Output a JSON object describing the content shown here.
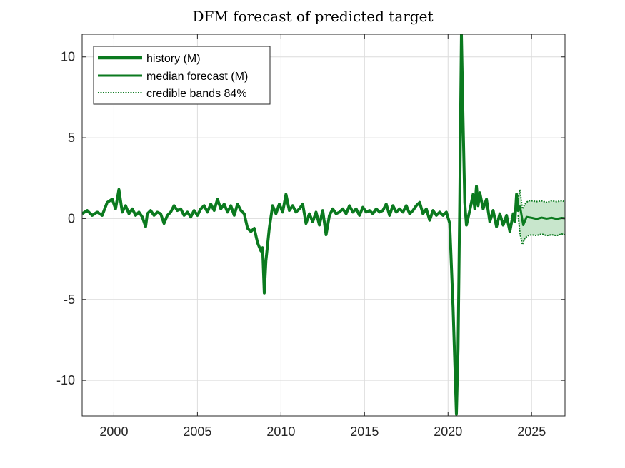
{
  "chart_data": {
    "type": "line",
    "title": "DFM forecast of predicted target",
    "xlabel": "",
    "ylabel": "",
    "xlim": [
      1998.1,
      2027.0
    ],
    "ylim": [
      -12.2,
      11.4
    ],
    "xticks": [
      2000,
      2005,
      2010,
      2015,
      2020,
      2025
    ],
    "xtick_labels": [
      "2000",
      "2005",
      "2010",
      "2015",
      "2020",
      "2025"
    ],
    "yticks": [
      -10,
      -5,
      0,
      5,
      10
    ],
    "ytick_labels": [
      "-10",
      "-5",
      "0",
      "5",
      "10"
    ],
    "grid": true,
    "legend_position": "top-left",
    "colors": {
      "line": "#0b7a1f",
      "band_fill": "#c8e6cc",
      "band_line": "#0b7a1f"
    },
    "legend": {
      "history": "history (M)",
      "median": "median forecast (M)",
      "bands": "credible bands 84%"
    },
    "series": [
      {
        "name": "history (M)",
        "x": [
          1998.1,
          1998.4,
          1998.7,
          1999.0,
          1999.3,
          1999.6,
          1999.9,
          2000.1,
          2000.3,
          2000.5,
          2000.7,
          2000.9,
          2001.1,
          2001.3,
          2001.5,
          2001.7,
          2001.9,
          2002.0,
          2002.2,
          2002.4,
          2002.6,
          2002.8,
          2003.0,
          2003.2,
          2003.4,
          2003.6,
          2003.8,
          2004.0,
          2004.2,
          2004.4,
          2004.6,
          2004.8,
          2005.0,
          2005.2,
          2005.4,
          2005.6,
          2005.8,
          2006.0,
          2006.2,
          2006.4,
          2006.6,
          2006.8,
          2007.0,
          2007.2,
          2007.4,
          2007.6,
          2007.8,
          2008.0,
          2008.2,
          2008.4,
          2008.6,
          2008.8,
          2008.9,
          2009.0,
          2009.1,
          2009.3,
          2009.5,
          2009.7,
          2009.9,
          2010.1,
          2010.3,
          2010.5,
          2010.7,
          2010.9,
          2011.1,
          2011.3,
          2011.5,
          2011.7,
          2011.9,
          2012.1,
          2012.3,
          2012.5,
          2012.7,
          2012.9,
          2013.1,
          2013.3,
          2013.5,
          2013.7,
          2013.9,
          2014.1,
          2014.3,
          2014.5,
          2014.7,
          2014.9,
          2015.1,
          2015.3,
          2015.5,
          2015.7,
          2015.9,
          2016.1,
          2016.3,
          2016.5,
          2016.7,
          2016.9,
          2017.1,
          2017.3,
          2017.5,
          2017.7,
          2017.9,
          2018.1,
          2018.3,
          2018.5,
          2018.7,
          2018.9,
          2019.1,
          2019.3,
          2019.5,
          2019.7,
          2019.9,
          2020.1,
          2020.3,
          2020.5,
          2020.6,
          2020.7,
          2020.8,
          2020.9,
          2021.0,
          2021.1,
          2021.3,
          2021.5,
          2021.6,
          2021.7,
          2021.8,
          2021.9,
          2022.1,
          2022.3,
          2022.5,
          2022.7,
          2022.9,
          2023.1,
          2023.3,
          2023.5,
          2023.7,
          2023.9,
          2024.0,
          2024.1,
          2024.2,
          2024.3
        ],
        "y": [
          0.3,
          0.5,
          0.2,
          0.4,
          0.2,
          1.0,
          1.2,
          0.6,
          1.8,
          0.4,
          0.8,
          0.3,
          0.6,
          0.2,
          0.4,
          0.1,
          -0.5,
          0.3,
          0.5,
          0.2,
          0.4,
          0.3,
          -0.3,
          0.2,
          0.4,
          0.8,
          0.5,
          0.6,
          0.2,
          0.4,
          0.1,
          0.5,
          0.2,
          0.6,
          0.8,
          0.4,
          0.9,
          0.5,
          1.2,
          0.6,
          0.9,
          0.4,
          0.8,
          0.2,
          0.9,
          0.5,
          0.3,
          -0.6,
          -0.8,
          -0.6,
          -1.5,
          -2.0,
          -1.8,
          -4.6,
          -2.6,
          -0.6,
          0.8,
          0.3,
          0.9,
          0.4,
          1.5,
          0.5,
          0.8,
          0.4,
          0.6,
          0.9,
          -0.3,
          0.3,
          -0.2,
          0.4,
          -0.4,
          0.5,
          -1.0,
          0.2,
          0.6,
          0.3,
          0.4,
          0.6,
          0.3,
          0.8,
          0.4,
          0.6,
          0.2,
          0.7,
          0.4,
          0.5,
          0.3,
          0.6,
          0.4,
          0.5,
          0.9,
          0.2,
          0.8,
          0.4,
          0.6,
          0.4,
          0.8,
          0.3,
          0.5,
          0.8,
          1.0,
          0.3,
          0.6,
          -0.1,
          0.5,
          0.2,
          0.4,
          0.2,
          0.4,
          -0.3,
          -5.5,
          -12.1,
          -8.0,
          1.0,
          11.4,
          6.0,
          1.0,
          -0.4,
          0.5,
          1.5,
          0.6,
          2.0,
          0.8,
          1.6,
          0.6,
          1.2,
          -0.2,
          0.5,
          -0.5,
          0.3,
          -0.4,
          0.2,
          -0.8,
          0.3,
          -0.2,
          1.5,
          0.5,
          0.8
        ]
      },
      {
        "name": "median forecast (M)",
        "x": [
          2024.3,
          2024.5,
          2024.7,
          2025.0,
          2025.3,
          2025.6,
          2025.9,
          2026.2,
          2026.5,
          2026.8,
          2027.0
        ],
        "y": [
          0.8,
          -0.4,
          0.1,
          0.05,
          -0.02,
          0.06,
          0.0,
          0.05,
          -0.02,
          0.04,
          0.02
        ]
      },
      {
        "name": "credible bands 84%",
        "x": [
          2024.2,
          2024.3,
          2024.45,
          2024.6,
          2024.8,
          2025.0,
          2025.3,
          2025.6,
          2025.9,
          2026.2,
          2026.5,
          2026.8,
          2027.0
        ],
        "upper": [
          1.2,
          1.8,
          0.6,
          0.9,
          1.1,
          1.1,
          1.05,
          1.1,
          1.0,
          1.1,
          1.05,
          1.1,
          1.05
        ],
        "lower": [
          0.2,
          -0.9,
          -1.6,
          -1.2,
          -1.05,
          -1.0,
          -1.05,
          -0.95,
          -1.05,
          -1.0,
          -1.05,
          -0.95,
          -1.0
        ]
      }
    ]
  }
}
